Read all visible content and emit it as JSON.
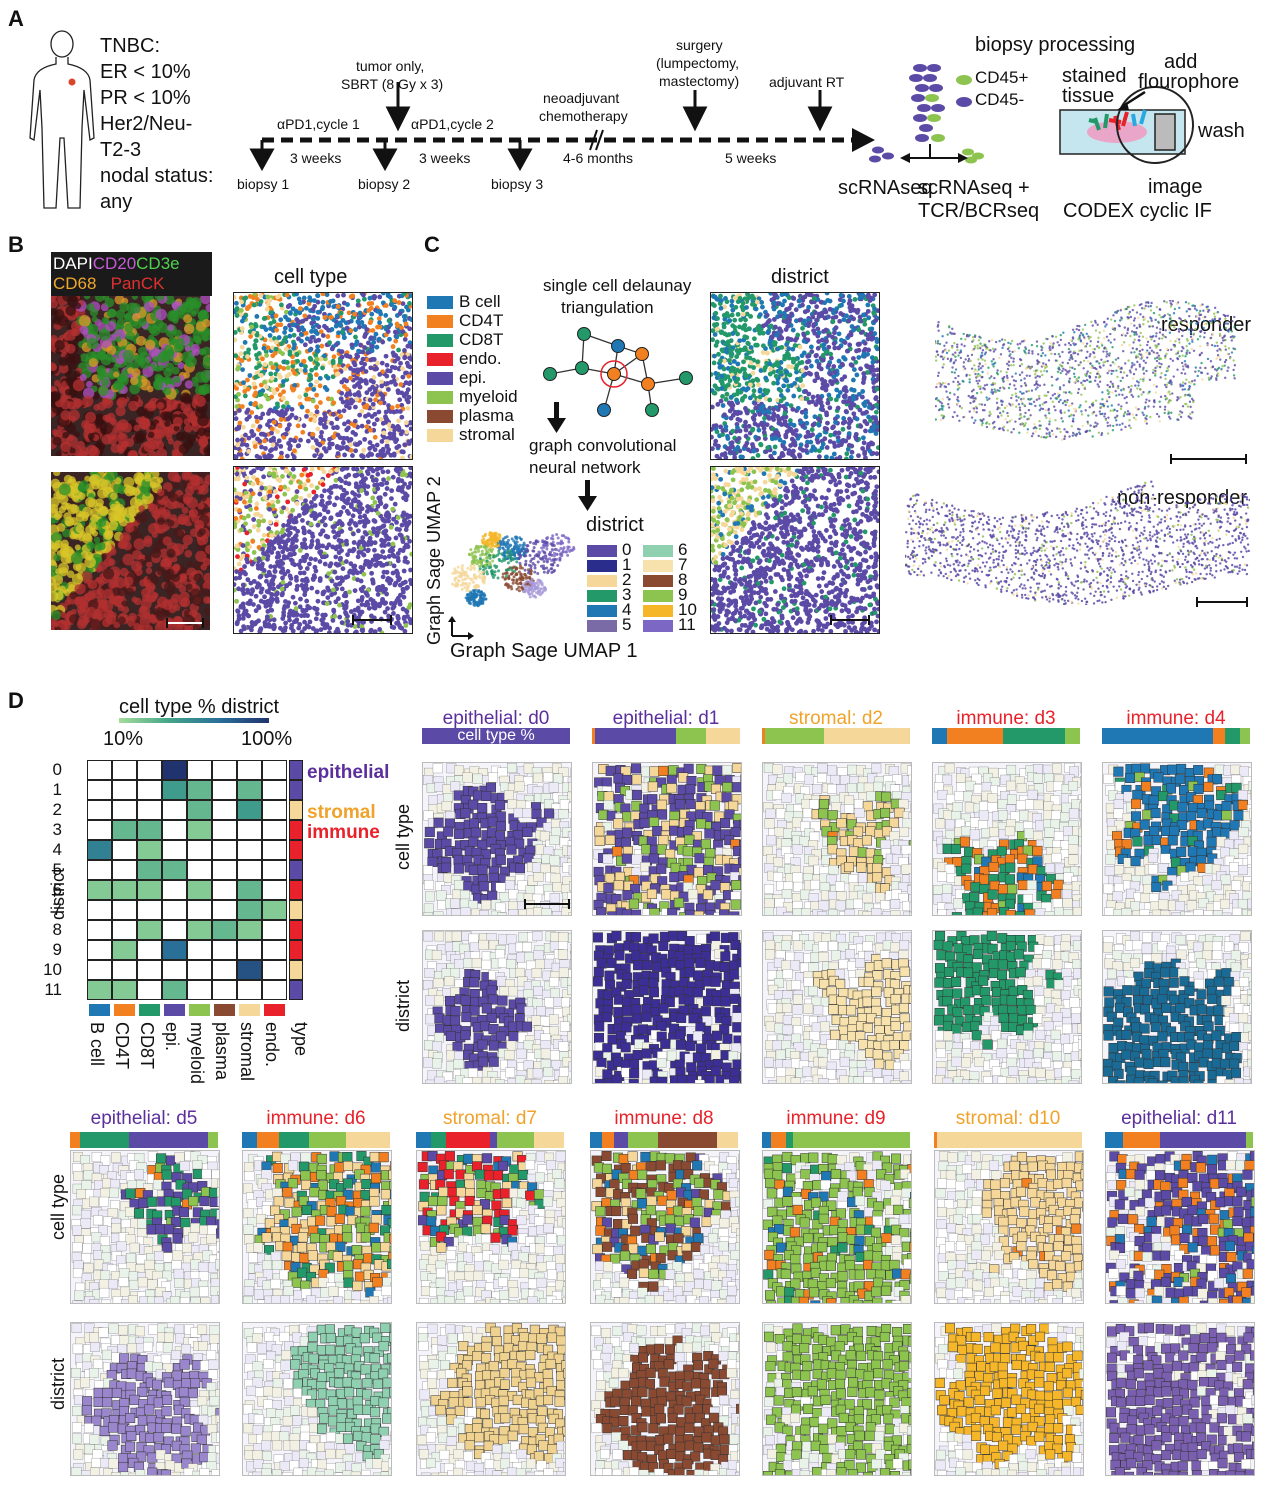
{
  "panel_labels": {
    "a": "A",
    "b": "B",
    "c": "C",
    "d": "D"
  },
  "colors": {
    "b_cell": "#1f77b4",
    "cd4t": "#f28020",
    "cd8t": "#23996a",
    "endo": "#e8212a",
    "epi": "#5b4aa6",
    "myeloid": "#8dc34f",
    "plasma": "#8a4a32",
    "stromal": "#f5d79a",
    "epithelial_text": "#5b2f9c",
    "stromal_text": "#f0a22a",
    "immune_text": "#e8212a"
  },
  "panelA": {
    "criteria": [
      "TNBC:",
      "ER < 10%",
      "PR < 10%",
      "Her2/Neu-",
      "T2-3",
      "nodal status:",
      "any"
    ],
    "tumor_only": "tumor only,",
    "sbrt": "SBRT (8 Gy x 3)",
    "cycle1": "αPD1,cycle 1",
    "cycle2": "αPD1,cycle 2",
    "neoadjuvant": "neoadjuvant",
    "chemotherapy": "chemotherapy",
    "surgery": "surgery",
    "surgery_type1": "(lumpectomy,",
    "surgery_type2": "mastectomy)",
    "adjuvant": "adjuvant RT",
    "gap1": "3 weeks",
    "gap2": "3 weeks",
    "gap3": "4-6 months",
    "gap4": "5 weeks",
    "biopsy1": "biopsy 1",
    "biopsy2": "biopsy 2",
    "biopsy3": "biopsy 3",
    "biopsy_processing": "biopsy processing",
    "cd45pos": "CD45+",
    "cd45neg": "CD45-",
    "scrnaseq": "scRNAseq",
    "scrnaseq_tcr1": "scRNAseq +",
    "scrnaseq_tcr2": "TCR/BCRseq",
    "stained1": "stained",
    "stained2": "tissue",
    "add1": "add",
    "add2": "flourophore",
    "wash": "wash",
    "image": "image",
    "codex": "CODEX cyclic IF"
  },
  "panelB": {
    "stain_labels": [
      "DAPI",
      "CD20",
      "CD3e",
      "CD68",
      "PanCK"
    ],
    "celltype_title": "cell type"
  },
  "panelC": {
    "legend": [
      "B cell",
      "CD4T",
      "CD8T",
      "endo.",
      "epi.",
      "myeloid",
      "plasma",
      "stromal"
    ],
    "delaunay1": "single cell delaunay",
    "delaunay2": "triangulation",
    "gcn1": "graph convolutional",
    "gcn2": "neural network",
    "district_title": "district",
    "district_legend_title": "district",
    "district_numbers": [
      "0",
      "1",
      "2",
      "3",
      "4",
      "5",
      "6",
      "7",
      "8",
      "9",
      "10",
      "11"
    ],
    "umap_x": "Graph Sage UMAP 1",
    "umap_y": "Graph Sage UMAP 2",
    "responder": "responder",
    "non_responder": "non-responder"
  },
  "panelD": {
    "heatmap_title": "cell type % district",
    "scale_min": "10%",
    "scale_max": "100%",
    "district_axis": "district",
    "type_axis": "type",
    "rows": [
      "0",
      "1",
      "2",
      "3",
      "4",
      "5",
      "6",
      "7",
      "8",
      "9",
      "10",
      "11"
    ],
    "columns": [
      "B cell",
      "CD4T",
      "CD8T",
      "epi.",
      "myeloid",
      "plasma",
      "stromal",
      "endo."
    ],
    "heat_values": [
      [
        0,
        0,
        0,
        100,
        0,
        0,
        0,
        0
      ],
      [
        0,
        0,
        0,
        45,
        30,
        0,
        30,
        0
      ],
      [
        0,
        0,
        0,
        0,
        30,
        0,
        45,
        0
      ],
      [
        0,
        30,
        30,
        0,
        20,
        0,
        0,
        0
      ],
      [
        60,
        0,
        20,
        0,
        0,
        0,
        0,
        0
      ],
      [
        0,
        0,
        30,
        30,
        0,
        0,
        0,
        0
      ],
      [
        20,
        20,
        20,
        0,
        20,
        0,
        30,
        0
      ],
      [
        0,
        0,
        0,
        0,
        0,
        0,
        30,
        20
      ],
      [
        0,
        0,
        20,
        0,
        20,
        30,
        20,
        0
      ],
      [
        0,
        20,
        0,
        70,
        0,
        0,
        0,
        0
      ],
      [
        0,
        0,
        0,
        0,
        0,
        0,
        85,
        0
      ],
      [
        20,
        20,
        0,
        30,
        0,
        0,
        0,
        0
      ]
    ],
    "type_legend": [
      "epithelial",
      "stromal",
      "immune"
    ],
    "row_types": [
      "epithelial",
      "epithelial",
      "stromal",
      "immune",
      "immune",
      "epithelial",
      "immune",
      "stromal",
      "immune",
      "immune",
      "stromal",
      "epithelial"
    ],
    "celltype_axis": "cell type",
    "district_row_axis": "district",
    "cell_type_pct": "cell type %",
    "tiles": [
      {
        "title": "epithelial: d0",
        "kind": "epithelial",
        "bar": [
          [
            "epi",
            100
          ]
        ]
      },
      {
        "title": "epithelial: d1",
        "kind": "epithelial",
        "bar": [
          [
            "cd4t",
            2
          ],
          [
            "epi",
            55
          ],
          [
            "myeloid",
            20
          ],
          [
            "stromal",
            23
          ]
        ]
      },
      {
        "title": "stromal: d2",
        "kind": "stromal",
        "bar": [
          [
            "cd4t",
            2
          ],
          [
            "myeloid",
            40
          ],
          [
            "stromal",
            58
          ]
        ]
      },
      {
        "title": "immune: d3",
        "kind": "immune",
        "bar": [
          [
            "b_cell",
            10
          ],
          [
            "cd4t",
            38
          ],
          [
            "cd8t",
            42
          ],
          [
            "myeloid",
            10
          ]
        ]
      },
      {
        "title": "immune: d4",
        "kind": "immune",
        "bar": [
          [
            "b_cell",
            75
          ],
          [
            "cd4t",
            8
          ],
          [
            "cd8t",
            10
          ],
          [
            "myeloid",
            7
          ]
        ]
      },
      {
        "title": "epithelial: d5",
        "kind": "epithelial",
        "bar": [
          [
            "cd4t",
            7
          ],
          [
            "cd8t",
            33
          ],
          [
            "epi",
            53
          ],
          [
            "myeloid",
            7
          ]
        ]
      },
      {
        "title": "immune: d6",
        "kind": "immune",
        "bar": [
          [
            "b_cell",
            10
          ],
          [
            "cd4t",
            15
          ],
          [
            "cd8t",
            20
          ],
          [
            "myeloid",
            25
          ],
          [
            "stromal",
            30
          ]
        ]
      },
      {
        "title": "stromal: d7",
        "kind": "stromal",
        "bar": [
          [
            "b_cell",
            10
          ],
          [
            "cd8t",
            10
          ],
          [
            "endo",
            30
          ],
          [
            "epi",
            5
          ],
          [
            "myeloid",
            25
          ],
          [
            "stromal",
            20
          ]
        ]
      },
      {
        "title": "immune: d8",
        "kind": "immune",
        "bar": [
          [
            "b_cell",
            8
          ],
          [
            "cd4t",
            8
          ],
          [
            "epi",
            10
          ],
          [
            "myeloid",
            20
          ],
          [
            "plasma",
            40
          ],
          [
            "stromal",
            14
          ]
        ]
      },
      {
        "title": "immune: d9",
        "kind": "immune",
        "bar": [
          [
            "b_cell",
            6
          ],
          [
            "cd4t",
            10
          ],
          [
            "cd8t",
            5
          ],
          [
            "myeloid",
            79
          ]
        ]
      },
      {
        "title": "stromal: d10",
        "kind": "stromal",
        "bar": [
          [
            "cd4t",
            2
          ],
          [
            "stromal",
            98
          ]
        ]
      },
      {
        "title": "epithelial: d11",
        "kind": "epithelial",
        "bar": [
          [
            "b_cell",
            12
          ],
          [
            "cd4t",
            25
          ],
          [
            "epi",
            58
          ],
          [
            "myeloid",
            5
          ]
        ]
      }
    ]
  }
}
